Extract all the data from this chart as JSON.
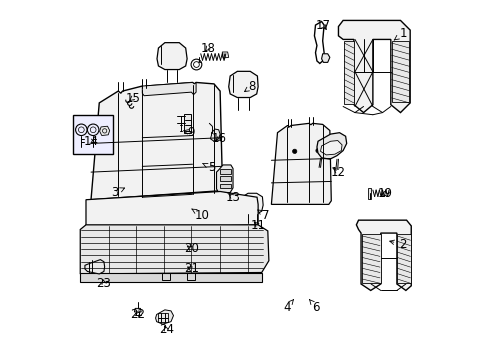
{
  "background_color": "#ffffff",
  "line_color": "#000000",
  "fill_light": "#f2f2f2",
  "fill_medium": "#e8e8e8",
  "fill_dark": "#d8d8d8",
  "font_size": 8.5,
  "dpi": 100,
  "figsize": [
    4.89,
    3.6
  ],
  "labels": {
    "1": [
      0.942,
      0.092,
      0.91,
      0.115
    ],
    "2": [
      0.942,
      0.68,
      0.895,
      0.668
    ],
    "3": [
      0.138,
      0.535,
      0.175,
      0.518
    ],
    "4": [
      0.618,
      0.855,
      0.638,
      0.832
    ],
    "5": [
      0.408,
      0.465,
      0.375,
      0.45
    ],
    "6": [
      0.7,
      0.855,
      0.68,
      0.832
    ],
    "7": [
      0.558,
      0.598,
      0.535,
      0.582
    ],
    "8": [
      0.522,
      0.238,
      0.498,
      0.255
    ],
    "9": [
      0.352,
      0.368,
      0.328,
      0.362
    ],
    "10": [
      0.382,
      0.598,
      0.352,
      0.58
    ],
    "11": [
      0.538,
      0.628,
      0.52,
      0.61
    ],
    "12": [
      0.762,
      0.478,
      0.74,
      0.462
    ],
    "13": [
      0.468,
      0.548,
      0.448,
      0.532
    ],
    "14": [
      0.072,
      0.392,
      0.092,
      0.4
    ],
    "15": [
      0.188,
      0.272,
      0.172,
      0.285
    ],
    "16": [
      0.428,
      0.385,
      0.412,
      0.398
    ],
    "17": [
      0.718,
      0.068,
      0.735,
      0.088
    ],
    "18": [
      0.398,
      0.132,
      0.385,
      0.148
    ],
    "19": [
      0.892,
      0.538,
      0.872,
      0.545
    ],
    "20": [
      0.352,
      0.692,
      0.332,
      0.678
    ],
    "21": [
      0.352,
      0.748,
      0.332,
      0.738
    ],
    "22": [
      0.202,
      0.875,
      0.215,
      0.86
    ],
    "23": [
      0.108,
      0.788,
      0.102,
      0.768
    ],
    "24": [
      0.282,
      0.918,
      0.272,
      0.898
    ]
  }
}
